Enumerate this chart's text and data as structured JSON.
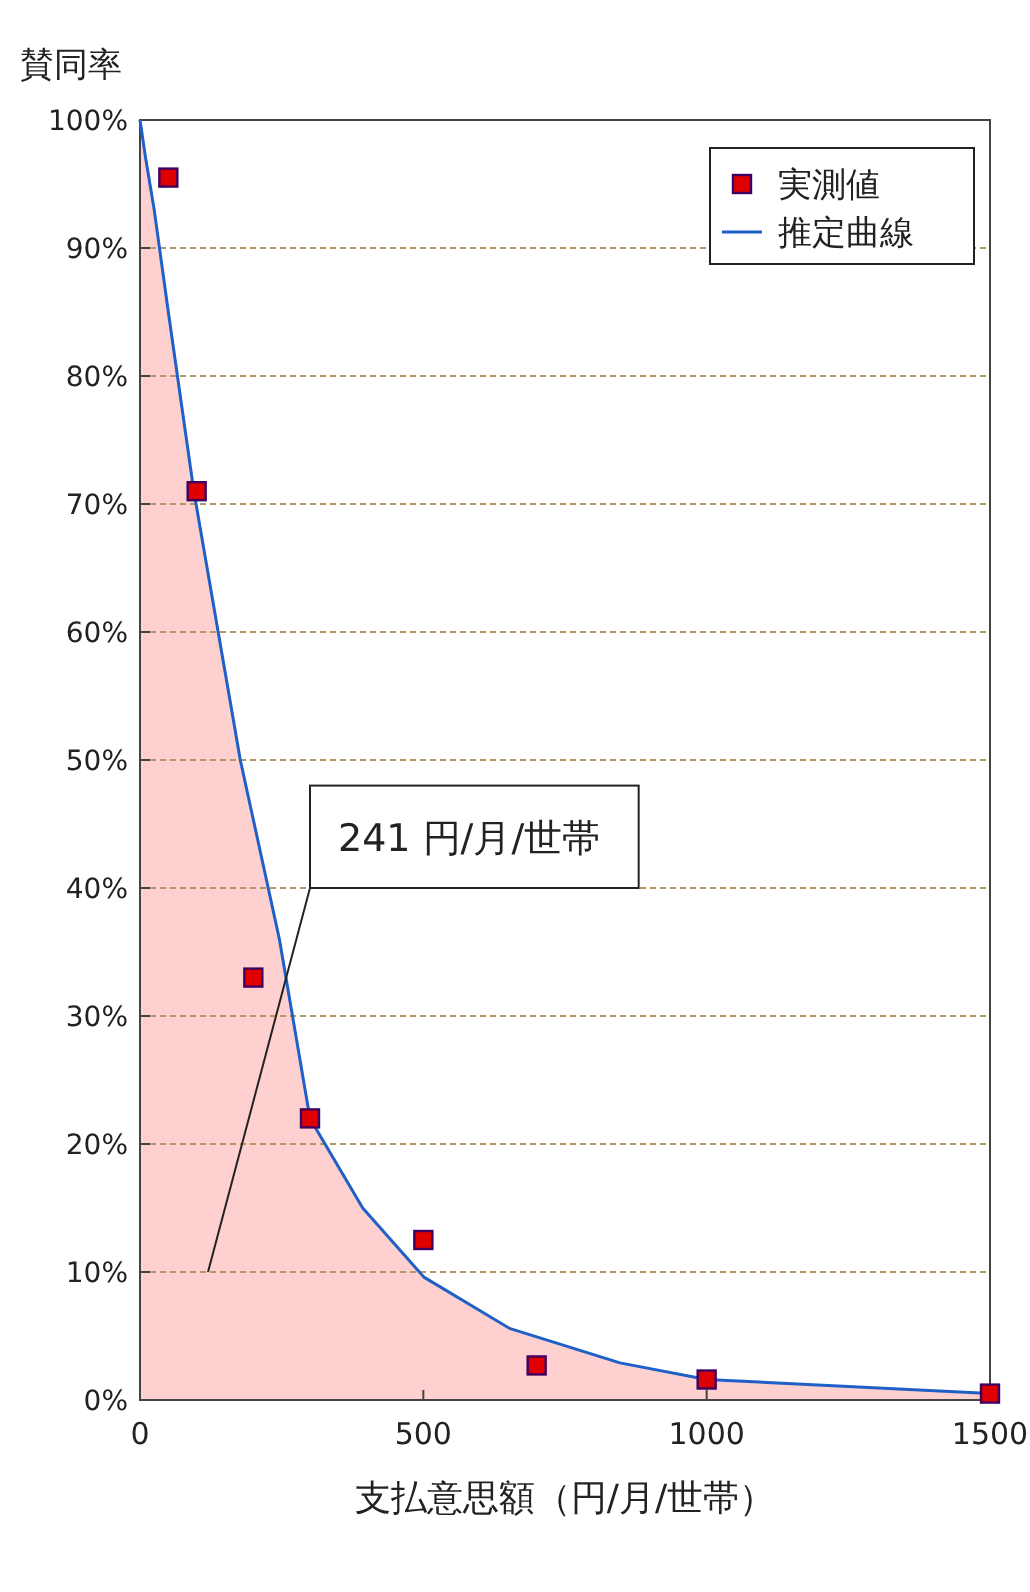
{
  "chart_data": {
    "type": "line",
    "xlabel": "支払意思額（円/月/世帯）",
    "ylabel": "賛同率",
    "xlim": [
      0,
      1500
    ],
    "ylim": [
      0,
      100
    ],
    "xticks": [
      0,
      500,
      1000,
      1500
    ],
    "yticks": [
      {
        "value": 0,
        "label": "0%"
      },
      {
        "value": 10,
        "label": "10%"
      },
      {
        "value": 20,
        "label": "20%"
      },
      {
        "value": 30,
        "label": "30%"
      },
      {
        "value": 40,
        "label": "40%"
      },
      {
        "value": 50,
        "label": "50%"
      },
      {
        "value": 60,
        "label": "60%"
      },
      {
        "value": 70,
        "label": "70%"
      },
      {
        "value": 80,
        "label": "80%"
      },
      {
        "value": 90,
        "label": "90%"
      },
      {
        "value": 100,
        "label": "100%"
      }
    ],
    "grid": "y",
    "legend": "top right",
    "annotations": [
      "241 円/月/世帯"
    ],
    "series": [
      {
        "type": "area",
        "color": "#ffc8c8",
        "x": [
          0,
          10,
          25,
          50,
          95,
          177,
          246,
          300,
          393,
          501,
          652,
          847,
          1000,
          1500
        ],
        "values": [
          100,
          97,
          93,
          85,
          71,
          50,
          36,
          22,
          15,
          9.6,
          5.6,
          2.9,
          1.6,
          0.5
        ]
      },
      {
        "name": "実測値",
        "type": "scatter",
        "marker": "square",
        "color": "#e00000",
        "x": [
          50,
          100,
          200,
          300,
          500,
          700,
          1000,
          1500
        ],
        "values": [
          95.5,
          71,
          33,
          22,
          12.5,
          2.7,
          1.6,
          0.5
        ]
      },
      {
        "name": "推定曲線",
        "type": "line",
        "color": "#1e5fc8",
        "x": [
          0,
          10,
          25,
          50,
          95,
          177,
          246,
          300,
          393,
          501,
          652,
          847,
          1000,
          1500
        ],
        "values": [
          100,
          97,
          93,
          85,
          71,
          50,
          36,
          22,
          15,
          9.6,
          5.6,
          2.9,
          1.6,
          0.5
        ]
      }
    ]
  }
}
